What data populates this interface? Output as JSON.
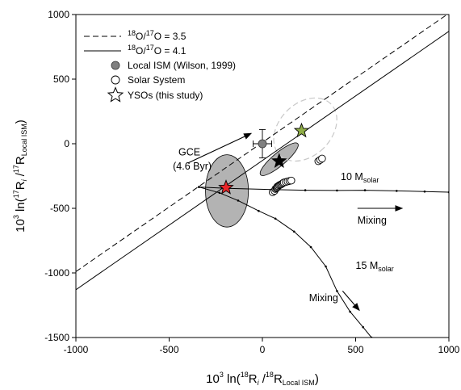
{
  "chart_data": {
    "type": "scatter",
    "xlim": [
      -1000,
      1000
    ],
    "ylim": [
      -1500,
      1000
    ],
    "x_ticks": [
      -1000,
      -500,
      0,
      500,
      1000
    ],
    "y_ticks": [
      -1500,
      -1000,
      -500,
      0,
      500,
      1000
    ],
    "x_tick_labels": [
      "-1000",
      "-500",
      "0",
      "500",
      "1000"
    ],
    "y_tick_labels": [
      "-1500",
      "-1000",
      "-500",
      "0",
      "500",
      "1000"
    ],
    "xlabel": {
      "prefix": "10",
      "exp": "3",
      "mid1": " ln(",
      "sup1": "18",
      "mid2": "R",
      "sub1": "i",
      "mid3": " /",
      "sup2": "18",
      "mid4": "R",
      "sub2": "Local ISM",
      "suffix": ")"
    },
    "ylabel": {
      "prefix": "10",
      "exp": "3",
      "mid1": " ln(",
      "sup1": "17",
      "mid2": "R",
      "sub1": "i",
      "mid3": " /",
      "sup2": "17",
      "mid4": "R",
      "sub2": "Local ISM",
      "suffix": ")"
    },
    "legend": {
      "position": "top-left",
      "entries": [
        {
          "sup": "18",
          "mid": "O/",
          "sup2": "17",
          "tail": "O = 3.5",
          "style": "dashed-line"
        },
        {
          "sup": "18",
          "mid": "O/",
          "sup2": "17",
          "tail": "O = 4.1",
          "style": "solid-line"
        },
        {
          "label": "Local ISM (Wilson, 1999)",
          "style": "gray-circle"
        },
        {
          "label": "Solar System",
          "style": "open-circle"
        },
        {
          "label": "YSOs (this study)",
          "style": "open-star"
        }
      ]
    },
    "lines": [
      {
        "name": "dashed",
        "style": "dashed",
        "points": [
          [
            -1000,
            -990
          ],
          [
            1000,
            1010
          ]
        ]
      },
      {
        "name": "solid",
        "style": "solid",
        "points": [
          [
            -1000,
            -1130
          ],
          [
            1000,
            870
          ]
        ]
      }
    ],
    "local_ism": {
      "x": 0,
      "y": 0,
      "xerr": 50,
      "yerr": 110,
      "color": "#808080"
    },
    "solar_system": [
      [
        55,
        -375
      ],
      [
        65,
        -365
      ],
      [
        70,
        -350
      ],
      [
        75,
        -345
      ],
      [
        78,
        -340
      ],
      [
        80,
        -332
      ],
      [
        85,
        -328
      ],
      [
        90,
        -322
      ],
      [
        95,
        -318
      ],
      [
        100,
        -315
      ],
      [
        105,
        -310
      ],
      [
        110,
        -305
      ],
      [
        115,
        -300
      ],
      [
        125,
        -296
      ],
      [
        135,
        -292
      ],
      [
        145,
        -288
      ],
      [
        155,
        -285
      ],
      [
        300,
        -135
      ],
      [
        310,
        -125
      ],
      [
        320,
        -115
      ]
    ],
    "ellipses": [
      {
        "cx": -190,
        "cy": -365,
        "rx": 115,
        "ry": 280,
        "rotate": 0,
        "style": "gray-filled"
      },
      {
        "cx": 90,
        "cy": -120,
        "rx": 130,
        "ry": 50,
        "rotate": -40,
        "style": "gray-filled"
      },
      {
        "cx": 230,
        "cy": 110,
        "rx": 140,
        "ry": 280,
        "rotate": 45,
        "style": "dashed-outline"
      }
    ],
    "ysos": [
      {
        "x": -195,
        "y": -340,
        "color": "#e8262a"
      },
      {
        "x": 90,
        "y": -135,
        "color": "#000000"
      },
      {
        "x": 210,
        "y": 100,
        "color": "#8fad47"
      }
    ],
    "mixing_10": {
      "points": [
        [
          -340,
          -335
        ],
        [
          -190,
          -345
        ],
        [
          50,
          -355
        ],
        [
          230,
          -360
        ],
        [
          400,
          -362
        ],
        [
          550,
          -360
        ],
        [
          720,
          -365
        ],
        [
          870,
          -370
        ],
        [
          1000,
          -375
        ]
      ],
      "label_prefix": "10 M",
      "label_sub": "solar",
      "label_x": 420,
      "label_y": -280
    },
    "mixing_15": {
      "points": [
        [
          -340,
          -335
        ],
        [
          -230,
          -380
        ],
        [
          -130,
          -440
        ],
        [
          -20,
          -520
        ],
        [
          70,
          -580
        ],
        [
          170,
          -680
        ],
        [
          260,
          -800
        ],
        [
          340,
          -950
        ],
        [
          400,
          -1140
        ],
        [
          470,
          -1300
        ],
        [
          540,
          -1420
        ],
        [
          585,
          -1500
        ]
      ],
      "label_prefix": "15 M",
      "label_sub": "solar",
      "label_x": 500,
      "label_y": -970
    },
    "annotations": [
      {
        "text": "GCE",
        "x": -450,
        "y": -90
      },
      {
        "text": "(4.6 Byr)",
        "x": -480,
        "y": -200
      },
      {
        "text": "Mixing",
        "x": 510,
        "y": -620
      },
      {
        "text": "Mixing",
        "x": 250,
        "y": -1220
      }
    ],
    "arrows": [
      {
        "from": [
          -400,
          -150
        ],
        "to": [
          -60,
          80
        ]
      },
      {
        "from": [
          510,
          -500
        ],
        "to": [
          750,
          -500
        ]
      },
      {
        "from": [
          430,
          -1140
        ],
        "to": [
          520,
          -1290
        ]
      }
    ]
  }
}
